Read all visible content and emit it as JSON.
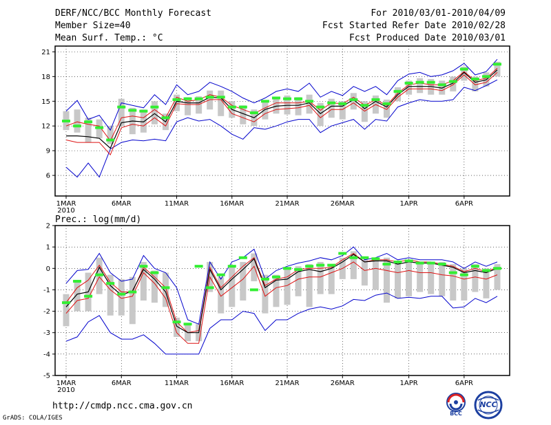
{
  "header": {
    "title": "DERF/NCC/BCC Monthly Forecast",
    "member_size": "Member Size=40",
    "variable": "Mean Surf. Temp.: °C",
    "period": "For 2010/03/01-2010/04/09",
    "started": "Fcst Started Refer Date 2010/02/28",
    "produced": "Fcst Produced Date 2010/03/01"
  },
  "footer": {
    "url": "http://cmdp.ncc.cma.gov.cn",
    "credit": "GrADS: COLA/IGES",
    "logo_bcc": "BCC",
    "logo_ncc": "NCC"
  },
  "colors": {
    "envelope": "#0000cc",
    "spread": "#dd1111",
    "mean": "#000000",
    "box": "#c8c8c8",
    "marker": "#33ee33"
  },
  "chart_data": [
    {
      "type": "line",
      "title": "Mean Surf. Temp.: °C",
      "days": 40,
      "ylim": [
        3.5,
        21.7
      ],
      "yticks": [
        6,
        9,
        12,
        15,
        18,
        21
      ],
      "xticks": [
        {
          "day": 1,
          "label": "1MAR",
          "sub": "2010"
        },
        {
          "day": 6,
          "label": "6MAR"
        },
        {
          "day": 11,
          "label": "11MAR"
        },
        {
          "day": 16,
          "label": "16MAR"
        },
        {
          "day": 21,
          "label": "21MAR"
        },
        {
          "day": 26,
          "label": "26MAR"
        },
        {
          "day": 32,
          "label": "1APR"
        },
        {
          "day": 37,
          "label": "6APR"
        }
      ],
      "series": [
        {
          "name": "max",
          "values": [
            13.8,
            15.1,
            12.8,
            13.3,
            11.5,
            14.8,
            14.5,
            14.2,
            15.8,
            14.6,
            17.0,
            15.8,
            16.2,
            17.3,
            16.8,
            16.2,
            15.4,
            14.8,
            15.4,
            16.2,
            16.5,
            16.2,
            17.2,
            15.5,
            16.2,
            15.7,
            16.8,
            16.2,
            16.8,
            15.8,
            17.5,
            18.3,
            18.5,
            18.0,
            18.2,
            18.7,
            19.6,
            18.2,
            18.6,
            20.1
          ]
        },
        {
          "name": "upper",
          "values": [
            12.0,
            12.5,
            12.2,
            12.0,
            10.2,
            13.0,
            13.2,
            13.0,
            14.0,
            13.0,
            15.5,
            15.0,
            15.2,
            15.8,
            15.5,
            14.5,
            14.0,
            13.5,
            14.2,
            14.8,
            14.8,
            14.8,
            15.0,
            13.9,
            14.8,
            14.7,
            15.5,
            14.5,
            15.2,
            14.5,
            16.0,
            17.0,
            17.2,
            17.0,
            17.0,
            17.5,
            18.6,
            17.5,
            17.8,
            19.0
          ]
        },
        {
          "name": "mean",
          "values": [
            10.8,
            10.8,
            10.7,
            10.5,
            9.3,
            12.4,
            12.6,
            12.5,
            13.5,
            12.5,
            15.0,
            14.8,
            14.8,
            15.5,
            15.4,
            14.0,
            13.5,
            13.0,
            14.0,
            14.4,
            14.5,
            14.5,
            14.8,
            13.5,
            14.4,
            14.4,
            15.2,
            14.1,
            15.0,
            14.3,
            15.8,
            16.8,
            16.8,
            16.8,
            16.6,
            17.2,
            18.5,
            17.3,
            17.6,
            18.8
          ]
        },
        {
          "name": "lower",
          "values": [
            10.3,
            10.0,
            10.0,
            10.0,
            8.5,
            11.8,
            12.2,
            12.0,
            13.0,
            12.0,
            14.7,
            14.6,
            14.6,
            15.2,
            15.2,
            13.5,
            13.0,
            12.5,
            13.5,
            14.0,
            14.1,
            14.2,
            14.5,
            13.0,
            14.0,
            14.0,
            14.8,
            13.8,
            14.6,
            14.0,
            15.5,
            16.5,
            16.5,
            16.5,
            16.3,
            17.0,
            18.2,
            17.0,
            17.3,
            18.5
          ]
        },
        {
          "name": "min",
          "values": [
            7.0,
            5.8,
            7.5,
            5.8,
            9.2,
            10.0,
            10.3,
            10.2,
            10.4,
            10.2,
            12.5,
            13.0,
            12.6,
            12.8,
            12.0,
            11.0,
            10.4,
            11.8,
            11.6,
            12.0,
            12.5,
            12.8,
            12.8,
            11.2,
            12.0,
            12.4,
            12.8,
            11.6,
            12.8,
            12.6,
            14.3,
            14.8,
            15.2,
            15.0,
            15.0,
            15.2,
            16.7,
            16.3,
            16.9,
            17.6
          ]
        },
        {
          "name": "box_top",
          "values": [
            13.8,
            14.0,
            13.0,
            12.8,
            12.0,
            15.3,
            14.2,
            14.0,
            15.0,
            13.5,
            15.8,
            15.5,
            15.6,
            16.3,
            16.3,
            15.0,
            14.5,
            14.0,
            15.0,
            15.5,
            15.7,
            15.5,
            15.8,
            14.8,
            15.3,
            15.0,
            16.0,
            15.0,
            15.7,
            15.2,
            16.7,
            17.5,
            17.8,
            17.7,
            17.5,
            18.0,
            19.2,
            18.0,
            18.5,
            19.8
          ]
        },
        {
          "name": "box_bottom",
          "values": [
            11.5,
            11.2,
            10.0,
            10.5,
            9.8,
            12.0,
            11.0,
            11.2,
            12.2,
            11.5,
            13.8,
            13.3,
            13.5,
            14.0,
            13.2,
            13.0,
            12.2,
            12.0,
            12.8,
            13.5,
            13.4,
            13.3,
            13.5,
            12.0,
            13.0,
            12.8,
            14.0,
            12.5,
            13.5,
            13.0,
            15.0,
            15.8,
            16.0,
            15.8,
            15.8,
            16.2,
            17.5,
            16.2,
            16.8,
            18.0
          ]
        },
        {
          "name": "marker",
          "values": [
            12.6,
            12.0,
            12.5,
            11.8,
            10.3,
            14.3,
            13.9,
            13.8,
            14.3,
            13.0,
            15.2,
            15.3,
            15.3,
            15.5,
            15.5,
            14.3,
            14.3,
            13.6,
            15.0,
            15.4,
            15.3,
            15.3,
            15.0,
            14.3,
            14.8,
            14.7,
            15.2,
            14.5,
            15.2,
            14.7,
            16.2,
            17.2,
            17.3,
            17.3,
            17.0,
            17.4,
            18.9,
            17.7,
            18.0,
            19.5
          ]
        }
      ]
    },
    {
      "type": "line",
      "title": "Prec.: log(mm/d)",
      "days": 40,
      "ylim": [
        -5,
        2
      ],
      "yticks": [
        -5,
        -4,
        -3,
        -2,
        -1,
        0,
        1,
        2
      ],
      "xticks": [
        {
          "day": 1,
          "label": "1MAR",
          "sub": "2010"
        },
        {
          "day": 6,
          "label": "6MAR"
        },
        {
          "day": 11,
          "label": "11MAR"
        },
        {
          "day": 16,
          "label": "16MAR"
        },
        {
          "day": 21,
          "label": "21MAR"
        },
        {
          "day": 26,
          "label": "26MAR"
        },
        {
          "day": 32,
          "label": "1APR"
        },
        {
          "day": 37,
          "label": "6APR"
        }
      ],
      "series": [
        {
          "name": "max",
          "values": [
            -0.7,
            -0.1,
            -0.05,
            0.7,
            -0.2,
            -0.6,
            -0.5,
            0.6,
            0.0,
            -0.2,
            -0.9,
            -2.4,
            -2.6,
            0.3,
            -0.5,
            0.3,
            0.5,
            0.9,
            -0.5,
            -0.1,
            0.1,
            0.25,
            0.35,
            0.5,
            0.4,
            0.6,
            1.0,
            0.4,
            0.5,
            0.7,
            0.4,
            0.5,
            0.4,
            0.4,
            0.4,
            0.3,
            0.0,
            0.3,
            0.1,
            0.3
          ]
        },
        {
          "name": "upper",
          "values": [
            -1.6,
            -0.9,
            -0.55,
            0.15,
            -0.65,
            -1.1,
            -1.1,
            0.05,
            -0.4,
            -0.9,
            -2.5,
            -3.0,
            -2.9,
            0.05,
            -0.9,
            -0.4,
            0.1,
            0.5,
            -0.8,
            -0.5,
            -0.4,
            -0.05,
            0.0,
            0.0,
            0.05,
            0.4,
            0.7,
            0.3,
            0.4,
            0.4,
            0.3,
            0.4,
            0.3,
            0.3,
            0.2,
            0.1,
            -0.15,
            0.0,
            -0.15,
            0.05
          ]
        },
        {
          "name": "mean",
          "values": [
            -1.8,
            -1.2,
            -1.1,
            0.05,
            -0.8,
            -1.25,
            -1.05,
            -0.05,
            -0.5,
            -1.1,
            -2.7,
            -3.0,
            -3.0,
            -0.05,
            -1.0,
            -0.5,
            -0.05,
            0.45,
            -0.9,
            -0.55,
            -0.5,
            -0.15,
            -0.05,
            -0.15,
            0.0,
            0.3,
            0.65,
            0.3,
            0.35,
            0.35,
            0.2,
            0.3,
            0.25,
            0.25,
            0.15,
            0.05,
            -0.2,
            -0.1,
            -0.2,
            0.0
          ]
        },
        {
          "name": "lower",
          "values": [
            -2.1,
            -1.5,
            -1.4,
            -0.4,
            -1.0,
            -1.4,
            -1.3,
            -0.2,
            -0.7,
            -1.4,
            -3.0,
            -3.5,
            -3.5,
            -0.4,
            -1.3,
            -0.9,
            -0.5,
            0.1,
            -1.3,
            -0.9,
            -0.8,
            -0.5,
            -0.4,
            -0.4,
            -0.2,
            0.0,
            0.3,
            -0.1,
            0.0,
            -0.1,
            -0.2,
            -0.1,
            -0.2,
            -0.2,
            -0.3,
            -0.35,
            -0.5,
            -0.4,
            -0.5,
            -0.3
          ]
        },
        {
          "name": "min",
          "values": [
            -3.4,
            -3.2,
            -2.5,
            -2.2,
            -3.0,
            -3.3,
            -3.3,
            -3.1,
            -3.5,
            -4.0,
            -4.0,
            -4.0,
            -4.0,
            -2.8,
            -2.4,
            -2.4,
            -2.0,
            -2.1,
            -2.9,
            -2.4,
            -2.4,
            -2.1,
            -1.9,
            -1.8,
            -1.9,
            -1.75,
            -1.45,
            -1.5,
            -1.25,
            -1.15,
            -1.4,
            -1.35,
            -1.4,
            -1.3,
            -1.3,
            -1.85,
            -1.8,
            -1.4,
            -1.6,
            -1.3
          ]
        },
        {
          "name": "box_top",
          "values": [
            -1.2,
            -0.6,
            -0.2,
            0.5,
            -0.3,
            -0.5,
            -0.4,
            0.3,
            -0.1,
            -0.2,
            -2.3,
            -2.6,
            -2.6,
            0.3,
            -0.4,
            0.1,
            0.3,
            0.7,
            -0.3,
            -0.3,
            0.0,
            0.1,
            0.2,
            0.3,
            0.2,
            0.5,
            0.8,
            0.4,
            0.4,
            0.5,
            0.3,
            0.4,
            0.3,
            0.3,
            0.3,
            0.2,
            0.0,
            0.2,
            0.0,
            0.2
          ]
        },
        {
          "name": "box_bottom",
          "values": [
            -2.7,
            -2.0,
            -2.0,
            -1.2,
            -2.2,
            -2.2,
            -2.6,
            -1.5,
            -1.6,
            -1.8,
            -3.2,
            -3.4,
            -3.4,
            -1.1,
            -2.1,
            -1.8,
            -1.5,
            -0.6,
            -2.1,
            -1.8,
            -1.7,
            -1.3,
            -1.8,
            -1.2,
            -1.2,
            -0.5,
            -0.5,
            -0.8,
            -1.0,
            -1.6,
            -1.4,
            -1.3,
            -1.1,
            -1.2,
            -1.3,
            -1.5,
            -1.5,
            -1.1,
            -1.4,
            -1.0
          ]
        },
        {
          "name": "marker",
          "values": [
            -1.6,
            -0.6,
            -1.3,
            -0.3,
            -0.7,
            -1.2,
            -1.1,
            0.1,
            -0.2,
            -0.9,
            -2.5,
            -2.6,
            0.1,
            -0.9,
            -0.3,
            0.1,
            0.5,
            -1.0,
            -0.5,
            -0.4,
            0.0,
            -0.05,
            0.1,
            0.15,
            0.15,
            0.7,
            0.5,
            0.5,
            0.45,
            0.2,
            0.3,
            0.35,
            0.25,
            0.25,
            0.2,
            -0.2,
            -0.3,
            0.1,
            -0.1,
            0.0
          ]
        }
      ]
    }
  ]
}
